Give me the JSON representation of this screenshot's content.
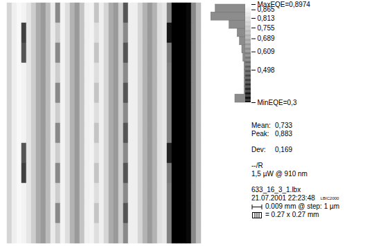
{
  "chart_data": {
    "type": "heatmap",
    "tick_labels": false,
    "cells": [
      [
        0.8,
        0.86,
        0.88,
        0.87,
        0.84,
        0.78,
        0.7,
        0.66,
        0.74,
        0.85,
        0.62,
        0.87,
        0.82,
        0.72,
        0.66,
        0.76,
        0.86,
        0.87,
        0.76,
        0.86,
        0.8,
        0.7,
        0.66,
        0.78,
        0.5,
        0.86,
        0.86,
        0.8,
        0.72,
        0.66,
        0.72,
        0.82,
        0.84,
        0.6,
        0.3,
        0.3,
        0.3,
        0.32,
        0.62,
        0.74
      ],
      [
        0.8,
        0.86,
        0.88,
        0.45,
        0.84,
        0.78,
        0.7,
        0.66,
        0.74,
        0.85,
        0.78,
        0.87,
        0.82,
        0.72,
        0.66,
        0.76,
        0.86,
        0.87,
        0.82,
        0.86,
        0.8,
        0.7,
        0.66,
        0.78,
        0.62,
        0.86,
        0.86,
        0.8,
        0.72,
        0.66,
        0.72,
        0.82,
        0.84,
        0.35,
        0.3,
        0.3,
        0.3,
        0.32,
        0.62,
        0.74
      ],
      [
        0.8,
        0.86,
        0.88,
        0.5,
        0.84,
        0.78,
        0.7,
        0.66,
        0.74,
        0.85,
        0.62,
        0.87,
        0.82,
        0.72,
        0.66,
        0.76,
        0.86,
        0.87,
        0.76,
        0.86,
        0.8,
        0.7,
        0.66,
        0.78,
        0.5,
        0.86,
        0.86,
        0.8,
        0.72,
        0.66,
        0.72,
        0.82,
        0.84,
        0.58,
        0.3,
        0.3,
        0.3,
        0.32,
        0.62,
        0.74
      ],
      [
        0.8,
        0.86,
        0.88,
        0.87,
        0.84,
        0.78,
        0.7,
        0.66,
        0.74,
        0.85,
        0.78,
        0.87,
        0.82,
        0.72,
        0.66,
        0.76,
        0.86,
        0.87,
        0.82,
        0.86,
        0.8,
        0.7,
        0.66,
        0.78,
        0.62,
        0.86,
        0.86,
        0.8,
        0.72,
        0.66,
        0.72,
        0.82,
        0.84,
        0.6,
        0.3,
        0.3,
        0.3,
        0.32,
        0.62,
        0.74
      ],
      [
        0.8,
        0.86,
        0.88,
        0.87,
        0.84,
        0.78,
        0.7,
        0.66,
        0.74,
        0.85,
        0.62,
        0.87,
        0.82,
        0.72,
        0.66,
        0.76,
        0.86,
        0.87,
        0.76,
        0.86,
        0.8,
        0.7,
        0.66,
        0.78,
        0.5,
        0.86,
        0.86,
        0.8,
        0.72,
        0.66,
        0.72,
        0.82,
        0.84,
        0.6,
        0.3,
        0.3,
        0.3,
        0.32,
        0.62,
        0.74
      ],
      [
        0.8,
        0.86,
        0.88,
        0.87,
        0.84,
        0.78,
        0.7,
        0.66,
        0.74,
        0.85,
        0.78,
        0.87,
        0.82,
        0.72,
        0.66,
        0.76,
        0.86,
        0.87,
        0.82,
        0.86,
        0.8,
        0.7,
        0.66,
        0.78,
        0.62,
        0.86,
        0.86,
        0.8,
        0.72,
        0.66,
        0.72,
        0.82,
        0.84,
        0.6,
        0.3,
        0.3,
        0.3,
        0.32,
        0.62,
        0.74
      ],
      [
        0.8,
        0.86,
        0.88,
        0.87,
        0.84,
        0.78,
        0.7,
        0.66,
        0.74,
        0.85,
        0.62,
        0.87,
        0.82,
        0.72,
        0.66,
        0.76,
        0.86,
        0.87,
        0.76,
        0.86,
        0.8,
        0.7,
        0.66,
        0.78,
        0.5,
        0.86,
        0.86,
        0.8,
        0.72,
        0.66,
        0.72,
        0.82,
        0.84,
        0.6,
        0.3,
        0.3,
        0.3,
        0.32,
        0.62,
        0.74
      ],
      [
        0.8,
        0.86,
        0.88,
        0.5,
        0.84,
        0.78,
        0.7,
        0.66,
        0.74,
        0.85,
        0.78,
        0.87,
        0.82,
        0.72,
        0.66,
        0.76,
        0.86,
        0.87,
        0.82,
        0.86,
        0.8,
        0.7,
        0.66,
        0.78,
        0.62,
        0.86,
        0.86,
        0.8,
        0.72,
        0.66,
        0.72,
        0.82,
        0.84,
        0.38,
        0.3,
        0.3,
        0.3,
        0.32,
        0.62,
        0.74
      ],
      [
        0.8,
        0.86,
        0.88,
        0.45,
        0.84,
        0.78,
        0.7,
        0.66,
        0.74,
        0.85,
        0.62,
        0.87,
        0.82,
        0.72,
        0.66,
        0.76,
        0.86,
        0.87,
        0.76,
        0.86,
        0.8,
        0.7,
        0.66,
        0.78,
        0.5,
        0.86,
        0.86,
        0.8,
        0.72,
        0.66,
        0.72,
        0.82,
        0.84,
        0.58,
        0.3,
        0.3,
        0.3,
        0.32,
        0.62,
        0.74
      ],
      [
        0.8,
        0.86,
        0.88,
        0.87,
        0.84,
        0.78,
        0.7,
        0.66,
        0.74,
        0.85,
        0.78,
        0.87,
        0.82,
        0.72,
        0.66,
        0.76,
        0.86,
        0.87,
        0.82,
        0.86,
        0.8,
        0.7,
        0.66,
        0.78,
        0.62,
        0.86,
        0.86,
        0.8,
        0.72,
        0.66,
        0.72,
        0.82,
        0.84,
        0.6,
        0.3,
        0.3,
        0.3,
        0.32,
        0.62,
        0.74
      ],
      [
        0.8,
        0.86,
        0.88,
        0.87,
        0.84,
        0.78,
        0.7,
        0.66,
        0.74,
        0.85,
        0.62,
        0.87,
        0.82,
        0.72,
        0.66,
        0.76,
        0.86,
        0.87,
        0.76,
        0.86,
        0.8,
        0.7,
        0.66,
        0.78,
        0.5,
        0.86,
        0.86,
        0.8,
        0.72,
        0.66,
        0.72,
        0.82,
        0.84,
        0.6,
        0.3,
        0.3,
        0.3,
        0.32,
        0.62,
        0.74
      ],
      [
        0.8,
        0.86,
        0.88,
        0.87,
        0.84,
        0.78,
        0.7,
        0.66,
        0.74,
        0.85,
        0.78,
        0.87,
        0.82,
        0.72,
        0.66,
        0.76,
        0.86,
        0.87,
        0.82,
        0.86,
        0.8,
        0.7,
        0.66,
        0.78,
        0.62,
        0.86,
        0.86,
        0.8,
        0.72,
        0.66,
        0.72,
        0.82,
        0.84,
        0.6,
        0.3,
        0.3,
        0.3,
        0.32,
        0.62,
        0.74
      ]
    ],
    "color_range": [
      0.3,
      0.8974
    ],
    "color_min_label": "MinEQE=0,3",
    "color_max_label": "MaxEQE=0,8974",
    "color_ticks": [
      {
        "value": 0.865,
        "label": "0,865"
      },
      {
        "value": 0.813,
        "label": "0,813"
      },
      {
        "value": 0.755,
        "label": "0,755"
      },
      {
        "value": 0.689,
        "label": "0,689"
      },
      {
        "value": 0.609,
        "label": "0,609"
      },
      {
        "value": 0.498,
        "label": "0,498"
      }
    ],
    "histogram": {
      "bins": [
        0.3,
        0.35,
        0.4,
        0.45,
        0.5,
        0.55,
        0.6,
        0.65,
        0.7,
        0.75,
        0.8,
        0.85,
        0.8974
      ],
      "counts": [
        9,
        1,
        1,
        1,
        1,
        2,
        3,
        5,
        7,
        14,
        30,
        26
      ]
    },
    "stats": [
      {
        "label": "Mean:",
        "value": "0,733"
      },
      {
        "label": "Peak:",
        "value": "0,883"
      },
      {
        "label": "Dev:",
        "value": "0,169"
      }
    ],
    "info": [
      "--/R",
      "1,5 µW @ 910 nm"
    ],
    "file": "633_16_3_1.lbx",
    "timestamp": "21.07.2001 22:23:48",
    "device": "LBIC2000",
    "scale_bar": "0.009 mm @ step: 1 µm",
    "image_size": "= 0.27 x 0.27 mm"
  }
}
